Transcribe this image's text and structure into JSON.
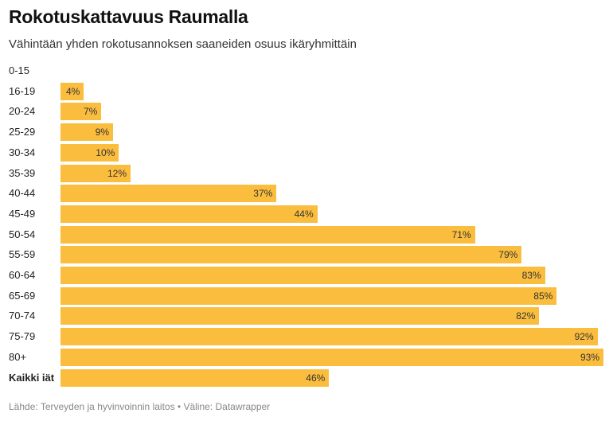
{
  "title": "Rokotuskattavuus Raumalla",
  "subtitle": "Vähintään yhden rokotusannoksen saaneiden osuus ikäryhmittäin",
  "source": "Lähde: Terveyden ja hyvinvoinnin laitos • Väline: Datawrapper",
  "colors": {
    "bar": "#fbbd3e"
  },
  "chart_data": {
    "type": "bar",
    "orientation": "horizontal",
    "title": "Rokotuskattavuus Raumalla",
    "subtitle": "Vähintään yhden rokotusannoksen saaneiden osuus ikäryhmittäin",
    "xlim": [
      0,
      93
    ],
    "grid": false,
    "categories": [
      "0-15",
      "16-19",
      "20-24",
      "25-29",
      "30-34",
      "35-39",
      "40-44",
      "45-49",
      "50-54",
      "55-59",
      "60-64",
      "65-69",
      "70-74",
      "75-79",
      "80+",
      "Kaikki iät"
    ],
    "values": [
      0,
      4,
      7,
      9,
      10,
      12,
      37,
      44,
      71,
      79,
      83,
      85,
      82,
      92,
      93,
      46
    ],
    "labels": [
      "",
      "4%",
      "7%",
      "9%",
      "10%",
      "12%",
      "37%",
      "44%",
      "71%",
      "79%",
      "83%",
      "85%",
      "82%",
      "92%",
      "93%",
      "46%"
    ],
    "emphasized_category": "Kaikki iät"
  }
}
